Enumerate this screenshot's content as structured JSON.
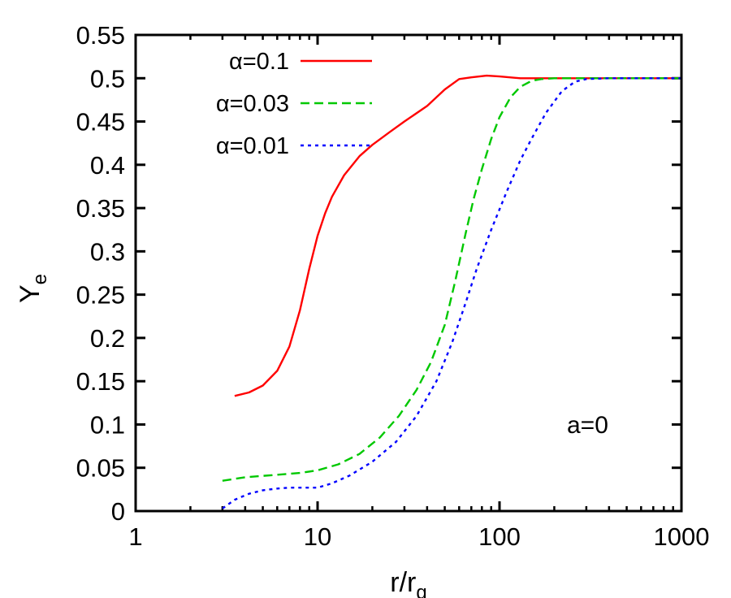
{
  "chart_data": {
    "type": "line",
    "xscale": "log",
    "xlim": [
      1,
      1000
    ],
    "ylim": [
      0,
      0.55
    ],
    "xlabel": "r/r",
    "xlabel_sub": "g",
    "ylabel": "Y",
    "ylabel_sub": "e",
    "xticks": [
      1,
      10,
      100,
      1000
    ],
    "xtick_labels": [
      "1",
      "10",
      "100",
      "1000"
    ],
    "yticks": [
      0,
      0.05,
      0.1,
      0.15,
      0.2,
      0.25,
      0.3,
      0.35,
      0.4,
      0.45,
      0.5,
      0.55
    ],
    "ytick_labels": [
      "0",
      "0.05",
      "0.1",
      "0.15",
      "0.2",
      "0.25",
      "0.3",
      "0.35",
      "0.4",
      "0.45",
      "0.5",
      "0.55"
    ],
    "grid": false,
    "legend_position": "top-left",
    "annotation": "a=0",
    "series": [
      {
        "name": "α=0.1",
        "color": "#ff0000",
        "dash": "solid",
        "x": [
          3.5,
          4.2,
          5.0,
          6.0,
          7.0,
          8.0,
          9.0,
          10.0,
          11.0,
          12.0,
          14.0,
          17.0,
          20.0,
          25.0,
          30.0,
          40.0,
          50.0,
          60.0,
          70.0,
          85.0,
          100.0,
          130.0,
          200.0,
          400.0,
          1000.0
        ],
        "y": [
          0.133,
          0.137,
          0.145,
          0.162,
          0.19,
          0.232,
          0.28,
          0.318,
          0.344,
          0.363,
          0.388,
          0.41,
          0.423,
          0.438,
          0.45,
          0.468,
          0.487,
          0.499,
          0.501,
          0.503,
          0.502,
          0.5,
          0.5,
          0.5,
          0.5
        ]
      },
      {
        "name": "α=0.03",
        "color": "#00c800",
        "dash": "dashed",
        "x": [
          3.0,
          4.0,
          6.0,
          8.0,
          10.0,
          13.0,
          17.0,
          22.0,
          28.0,
          35.0,
          42.0,
          50.0,
          57.0,
          65.0,
          72.0,
          80.0,
          90.0,
          100.0,
          115.0,
          130.0,
          150.0,
          170.0,
          200.0,
          300.0,
          1000.0
        ],
        "y": [
          0.035,
          0.039,
          0.042,
          0.044,
          0.047,
          0.054,
          0.066,
          0.085,
          0.11,
          0.14,
          0.172,
          0.215,
          0.265,
          0.32,
          0.36,
          0.395,
          0.43,
          0.455,
          0.478,
          0.49,
          0.497,
          0.499,
          0.5,
          0.5,
          0.5
        ]
      },
      {
        "name": "α=0.01",
        "color": "#0000ff",
        "dash": "dotted",
        "x": [
          3.0,
          3.5,
          4.2,
          5.0,
          6.0,
          7.0,
          8.0,
          10.0,
          12.0,
          15.0,
          20.0,
          27.0,
          35.0,
          45.0,
          55.0,
          65.0,
          75.0,
          90.0,
          110.0,
          130.0,
          150.0,
          180.0,
          220.0,
          260.0,
          300.0,
          400.0,
          1000.0
        ],
        "y": [
          0.003,
          0.013,
          0.02,
          0.024,
          0.026,
          0.027,
          0.027,
          0.027,
          0.032,
          0.041,
          0.057,
          0.08,
          0.11,
          0.15,
          0.195,
          0.24,
          0.28,
          0.325,
          0.37,
          0.405,
          0.43,
          0.46,
          0.485,
          0.496,
          0.499,
          0.5,
          0.5
        ]
      }
    ]
  }
}
